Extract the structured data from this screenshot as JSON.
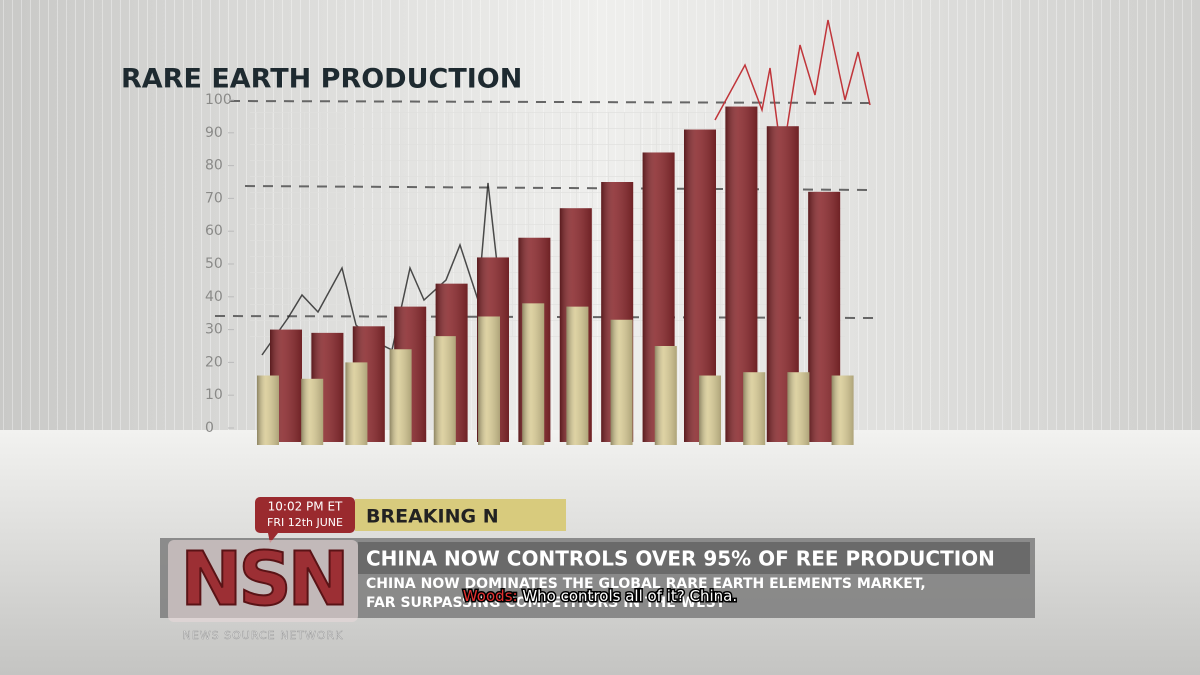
{
  "chart_data": {
    "type": "bar",
    "title": "RARE EARTH PRODUCTION",
    "series": [
      {
        "color": "#8a2a2e",
        "values": [
          30,
          29,
          31,
          37,
          44,
          52,
          58,
          67,
          75,
          84,
          91,
          98,
          92,
          72
        ]
      },
      {
        "color": "#d9cc97",
        "values": [
          16,
          15,
          20,
          24,
          28,
          34,
          38,
          37,
          33,
          25,
          16,
          17,
          17,
          16
        ]
      }
    ],
    "ylim": [
      0,
      100
    ],
    "yticks": [
      0,
      10,
      20,
      30,
      40,
      50,
      60,
      70,
      80,
      90,
      100
    ]
  },
  "news": {
    "time": "10:02 PM ET",
    "date": "FRI 12th JUNE",
    "breaking": "BREAKING N",
    "logo": "NSN",
    "network": "NEWS SOURCE NETWORK",
    "headline": "CHINA NOW CONTROLS OVER 95% OF REE PRODUCTION",
    "body": [
      "CHINA NOW DOMINATES THE GLOBAL RARE EARTH ELEMENTS MARKET,",
      "FAR SURPASSING COMPETITORS IN THE WEST"
    ]
  },
  "subtitle": {
    "speaker": "Woods:",
    "text": "Who controls all of it? China."
  }
}
